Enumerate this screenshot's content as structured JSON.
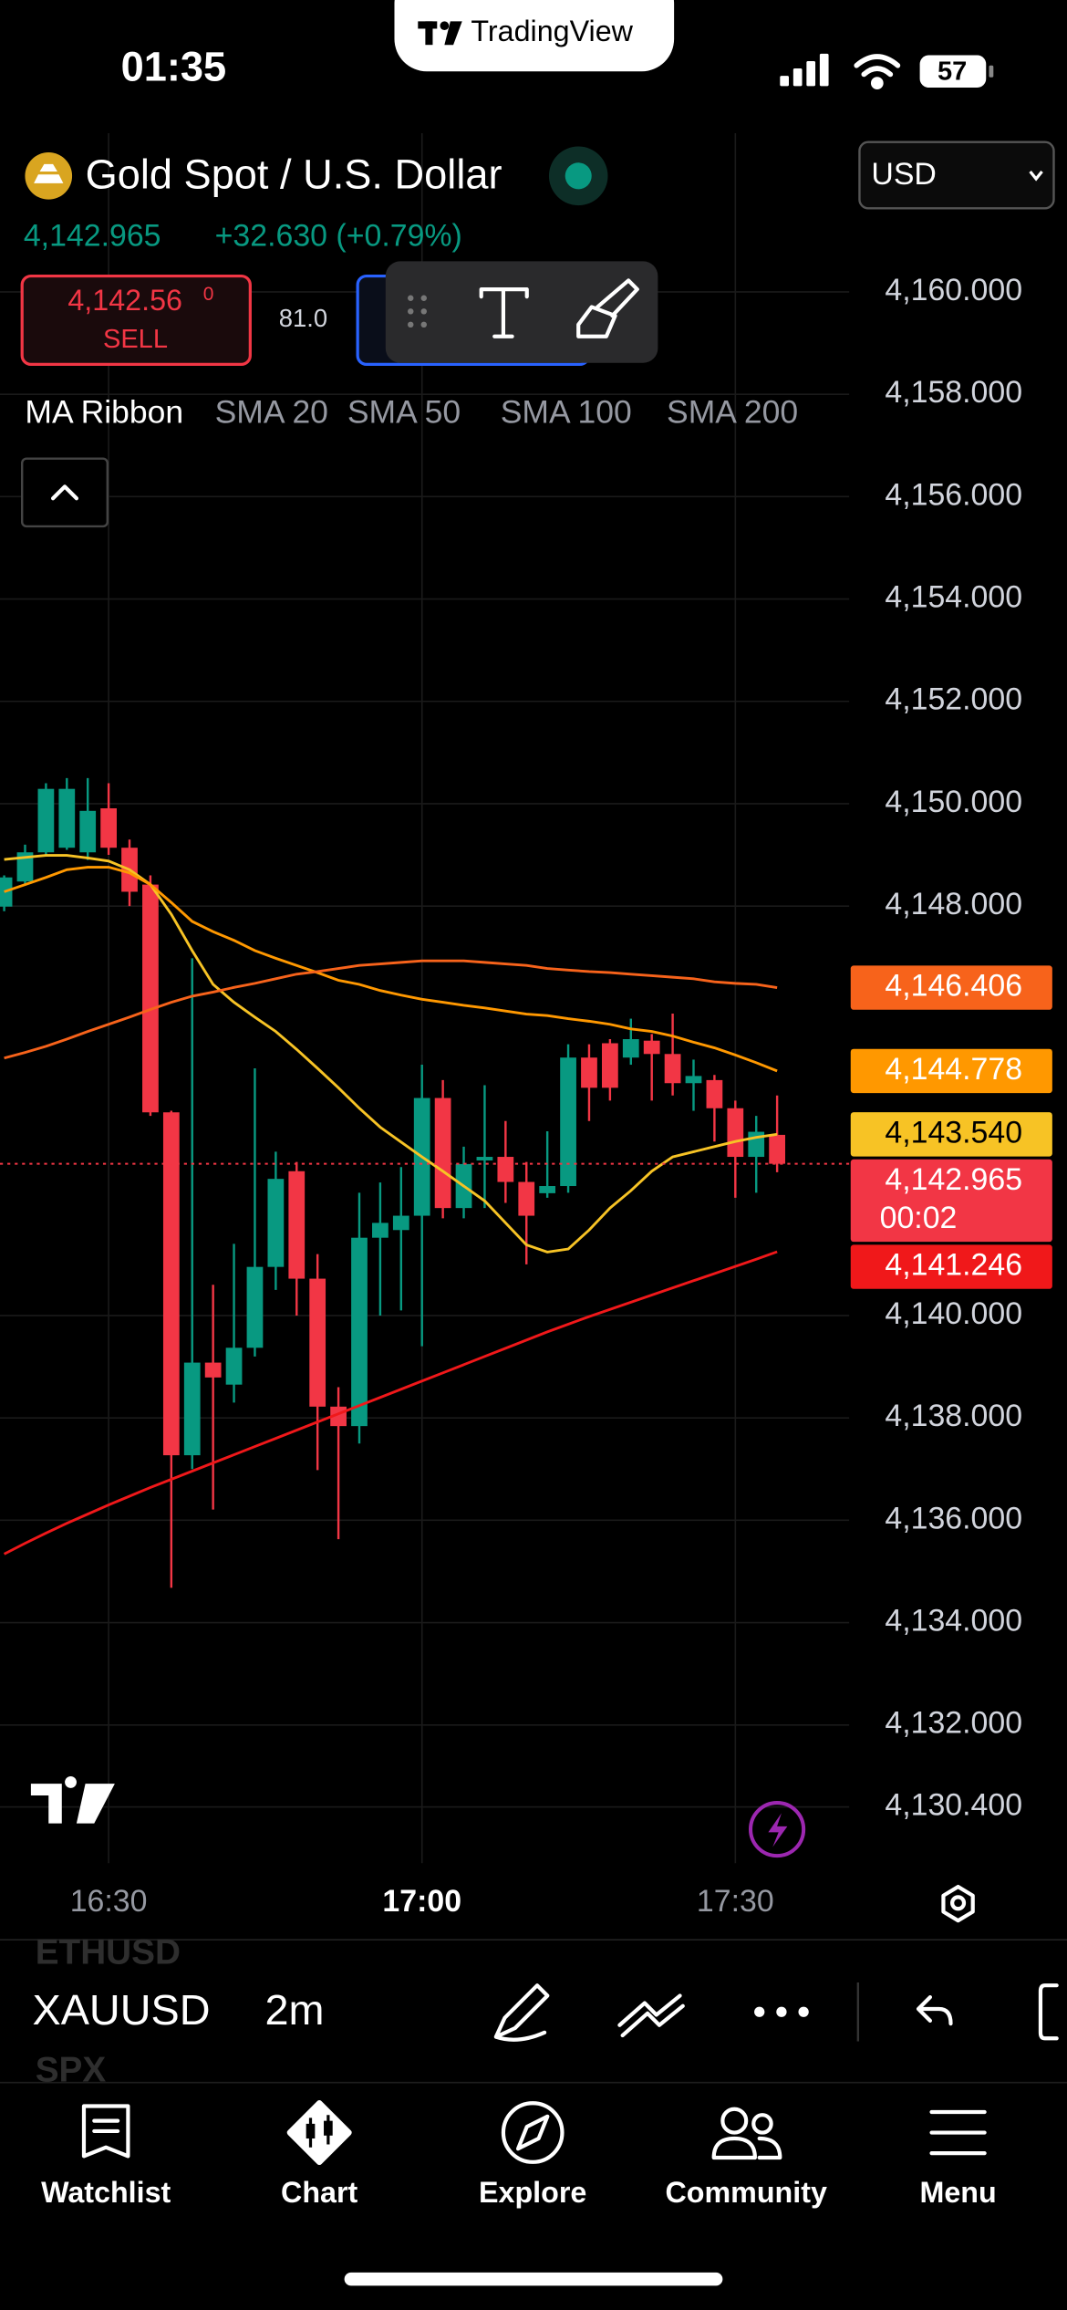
{
  "status_bar": {
    "time": "01:35",
    "app": "TradingView",
    "battery": "57"
  },
  "header": {
    "symbol_name": "Gold Spot / U.S. Dollar",
    "currency": "USD",
    "price": "4,142.965",
    "change": "+32.630 (+0.79%)",
    "sell_price": "4,142.56",
    "sell_price_sup": "0",
    "sell_label": "SELL",
    "spread": "81.0"
  },
  "chart_data": {
    "type": "candlestick",
    "indicator": "MA Ribbon",
    "up_color": "#089981",
    "down_color": "#f23645",
    "x": [
      980,
      982,
      984,
      986,
      988,
      990,
      992,
      994,
      996,
      998,
      1000,
      1002,
      1004,
      1006,
      1008,
      1010,
      1012,
      1014,
      1016,
      1018,
      1020,
      1022,
      1024,
      1026,
      1028,
      1030,
      1032,
      1034,
      1036,
      1038,
      1040,
      1042,
      1044,
      1046,
      1048,
      1050,
      1052,
      1054
    ],
    "open": [
      4147.99,
      4148.48,
      4149.05,
      4149.14,
      4149.05,
      4149.91,
      4149.14,
      4148.42,
      4143.97,
      4137.27,
      4139.08,
      4138.65,
      4139.37,
      4140.95,
      4142.82,
      4140.72,
      4138.22,
      4137.84,
      4141.52,
      4141.67,
      4141.95,
      4144.25,
      4142.1,
      4143.03,
      4143.1,
      4142.61,
      4142.39,
      4142.53,
      4145.04,
      4145.32,
      4145.04,
      4145.37,
      4145.11,
      4144.54,
      4144.6,
      4144.05,
      4143.1,
      4143.53
    ],
    "high": [
      4148.6,
      4149.2,
      4150.4,
      4150.5,
      4150.5,
      4150.4,
      4149.3,
      4148.6,
      4144.0,
      4146.98,
      4140.6,
      4141.4,
      4144.83,
      4143.2,
      4143.0,
      4141.2,
      4138.6,
      4142.4,
      4142.6,
      4142.9,
      4144.9,
      4144.6,
      4143.3,
      4144.5,
      4143.8,
      4143.0,
      4143.6,
      4145.3,
      4145.3,
      4145.4,
      4145.8,
      4145.5,
      4145.9,
      4145.0,
      4144.7,
      4144.2,
      4143.9,
      4144.3
    ],
    "low": [
      4147.9,
      4148.4,
      4149.0,
      4149.1,
      4148.9,
      4149.0,
      4148.0,
      4143.9,
      4134.68,
      4137.0,
      4136.21,
      4138.3,
      4139.2,
      4140.5,
      4140.0,
      4136.98,
      4135.63,
      4137.5,
      4140.0,
      4140.1,
      4139.4,
      4141.9,
      4141.9,
      4142.1,
      4142.2,
      4141.0,
      4142.3,
      4142.4,
      4143.8,
      4144.2,
      4144.9,
      4144.2,
      4144.3,
      4144.0,
      4143.4,
      4142.3,
      4142.4,
      4142.8
    ],
    "close": [
      4148.56,
      4149.05,
      4150.29,
      4150.29,
      4149.86,
      4149.14,
      4148.28,
      4143.97,
      4137.27,
      4139.08,
      4138.79,
      4139.37,
      4140.95,
      4142.67,
      4140.72,
      4138.22,
      4137.84,
      4141.52,
      4141.81,
      4141.95,
      4144.25,
      4142.1,
      4142.96,
      4143.1,
      4142.61,
      4141.95,
      4142.53,
      4145.04,
      4144.45,
      4144.45,
      4145.4,
      4145.11,
      4144.54,
      4144.68,
      4144.05,
      4143.1,
      4143.59,
      4142.965
    ],
    "series": [
      {
        "name": "SMA 20",
        "color": "#f7c325",
        "values": [
          4148.91,
          4148.95,
          4148.99,
          4148.99,
          4148.94,
          4148.88,
          4148.71,
          4148.42,
          4147.84,
          4147.13,
          4146.47,
          4146.12,
          4145.83,
          4145.55,
          4145.2,
          4144.83,
          4144.45,
          4144.05,
          4143.68,
          4143.39,
          4143.1,
          4142.82,
          4142.53,
          4142.24,
          4141.81,
          4141.38,
          4141.24,
          4141.3,
          4141.67,
          4142.1,
          4142.44,
          4142.82,
          4143.1,
          4143.2,
          4143.3,
          4143.4,
          4143.48,
          4143.54
        ]
      },
      {
        "name": "SMA 50",
        "color": "#ff9800",
        "values": [
          4148.28,
          4148.42,
          4148.56,
          4148.71,
          4148.76,
          4148.76,
          4148.65,
          4148.42,
          4148.07,
          4147.7,
          4147.5,
          4147.33,
          4147.13,
          4146.98,
          4146.84,
          4146.7,
          4146.55,
          4146.47,
          4146.35,
          4146.26,
          4146.18,
          4146.12,
          4146.06,
          4146.01,
          4145.95,
          4145.89,
          4145.86,
          4145.8,
          4145.75,
          4145.69,
          4145.6,
          4145.55,
          4145.46,
          4145.34,
          4145.23,
          4145.09,
          4144.94,
          4144.778
        ]
      },
      {
        "name": "SMA 100",
        "color": "#f7631b",
        "values": [
          4145.03,
          4145.14,
          4145.26,
          4145.4,
          4145.55,
          4145.69,
          4145.83,
          4145.98,
          4146.12,
          4146.24,
          4146.32,
          4146.41,
          4146.49,
          4146.58,
          4146.67,
          4146.72,
          4146.78,
          4146.84,
          4146.87,
          4146.9,
          4146.93,
          4146.93,
          4146.93,
          4146.9,
          4146.87,
          4146.84,
          4146.78,
          4146.75,
          4146.72,
          4146.7,
          4146.67,
          4146.64,
          4146.61,
          4146.58,
          4146.52,
          4146.49,
          4146.47,
          4146.406
        ]
      },
      {
        "name": "SMA 200",
        "color": "#f0181a",
        "values": [
          4135.34,
          4135.55,
          4135.75,
          4135.94,
          4136.12,
          4136.3,
          4136.47,
          4136.64,
          4136.8,
          4136.96,
          4137.12,
          4137.28,
          4137.44,
          4137.6,
          4137.76,
          4137.92,
          4138.08,
          4138.24,
          4138.4,
          4138.56,
          4138.72,
          4138.88,
          4139.04,
          4139.2,
          4139.36,
          4139.52,
          4139.68,
          4139.83,
          4139.98,
          4140.12,
          4140.26,
          4140.4,
          4140.54,
          4140.68,
          4140.82,
          4140.96,
          4141.1,
          4141.246
        ]
      }
    ],
    "price_labels": [
      {
        "value": 4146.406,
        "label": "4,146.406",
        "color": "#f7631b"
      },
      {
        "value": 4144.778,
        "label": "4,144.778",
        "color": "#ff9800"
      },
      {
        "value": 4143.54,
        "label": "4,143.540",
        "color": "#f7c325"
      },
      {
        "value": 4142.965,
        "label": "4,142.965",
        "color": "#f23645",
        "countdown": "00:02"
      },
      {
        "value": 4141.246,
        "label": "4,141.246",
        "color": "#f0181a"
      }
    ],
    "ylim": [
      4129.3,
      4163.1
    ],
    "yticks": [
      {
        "value": 4160,
        "label": "4,160.000"
      },
      {
        "value": 4158,
        "label": "4,158.000"
      },
      {
        "value": 4156,
        "label": "4,156.000"
      },
      {
        "value": 4154,
        "label": "4,154.000"
      },
      {
        "value": 4152,
        "label": "4,152.000"
      },
      {
        "value": 4150,
        "label": "4,150.000"
      },
      {
        "value": 4148,
        "label": "4,148.000"
      },
      {
        "value": 4140,
        "label": "4,140.000"
      },
      {
        "value": 4138,
        "label": "4,138.000"
      },
      {
        "value": 4136,
        "label": "4,136.000"
      },
      {
        "value": 4134,
        "label": "4,134.000"
      },
      {
        "value": 4132,
        "label": "4,132.000"
      },
      {
        "value": 4130.4,
        "label": "4,130.400"
      }
    ],
    "xlim": [
      979.6,
      1060.9
    ],
    "xticks": [
      {
        "value": 990,
        "label": "16:30"
      },
      {
        "value": 1020,
        "label": "17:00"
      },
      {
        "value": 1050,
        "label": "17:30"
      }
    ],
    "grid": true
  },
  "toolbar": {
    "symbols": [
      "ETHUSD",
      "XAUUSD",
      "SPX"
    ],
    "interval": "2m"
  },
  "tab_bar": {
    "tabs": [
      "Watchlist",
      "Chart",
      "Explore",
      "Community",
      "Menu"
    ]
  }
}
